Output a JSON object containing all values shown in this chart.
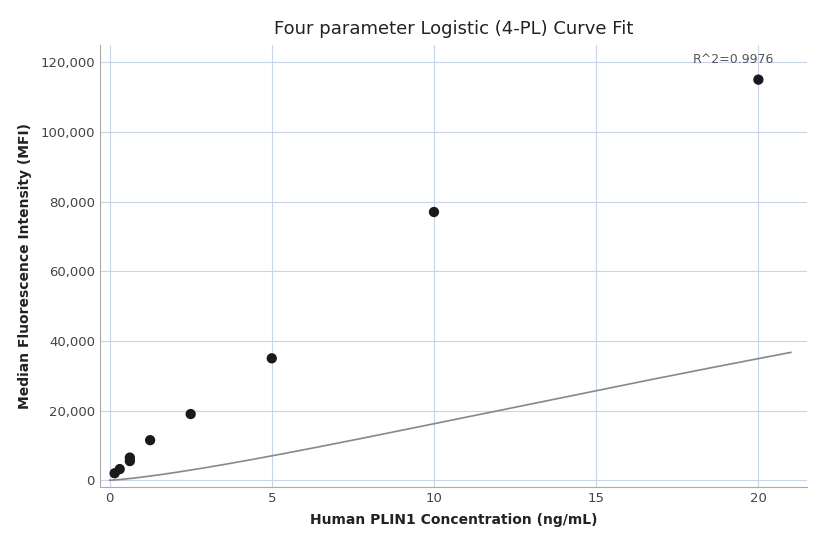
{
  "title": "Four parameter Logistic (4-PL) Curve Fit",
  "xlabel": "Human PLIN1 Concentration (ng/mL)",
  "ylabel": "Median Fluorescence Intensity (MFI)",
  "scatter_x": [
    0.156,
    0.313,
    0.625,
    0.625,
    1.25,
    2.5,
    5.0,
    10.0,
    20.0
  ],
  "scatter_y": [
    2000,
    3200,
    5500,
    6500,
    11500,
    19000,
    35000,
    77000,
    115000
  ],
  "xlim": [
    -0.3,
    21.5
  ],
  "ylim": [
    -2000,
    125000
  ],
  "yticks": [
    0,
    20000,
    40000,
    60000,
    80000,
    100000,
    120000
  ],
  "xticks": [
    0,
    5,
    10,
    15,
    20
  ],
  "r_squared": "R^2=0.9976",
  "4pl_A": 0,
  "4pl_B": 1.3,
  "4pl_C": 55.0,
  "4pl_D": 165000,
  "curve_color": "#888888",
  "scatter_color": "#1a1a1a",
  "scatter_size": 55,
  "grid_color": "#c8d4e8",
  "bg_color": "#ffffff",
  "title_fontsize": 13,
  "label_fontsize": 10,
  "tick_fontsize": 9.5,
  "annotation_fontsize": 9
}
